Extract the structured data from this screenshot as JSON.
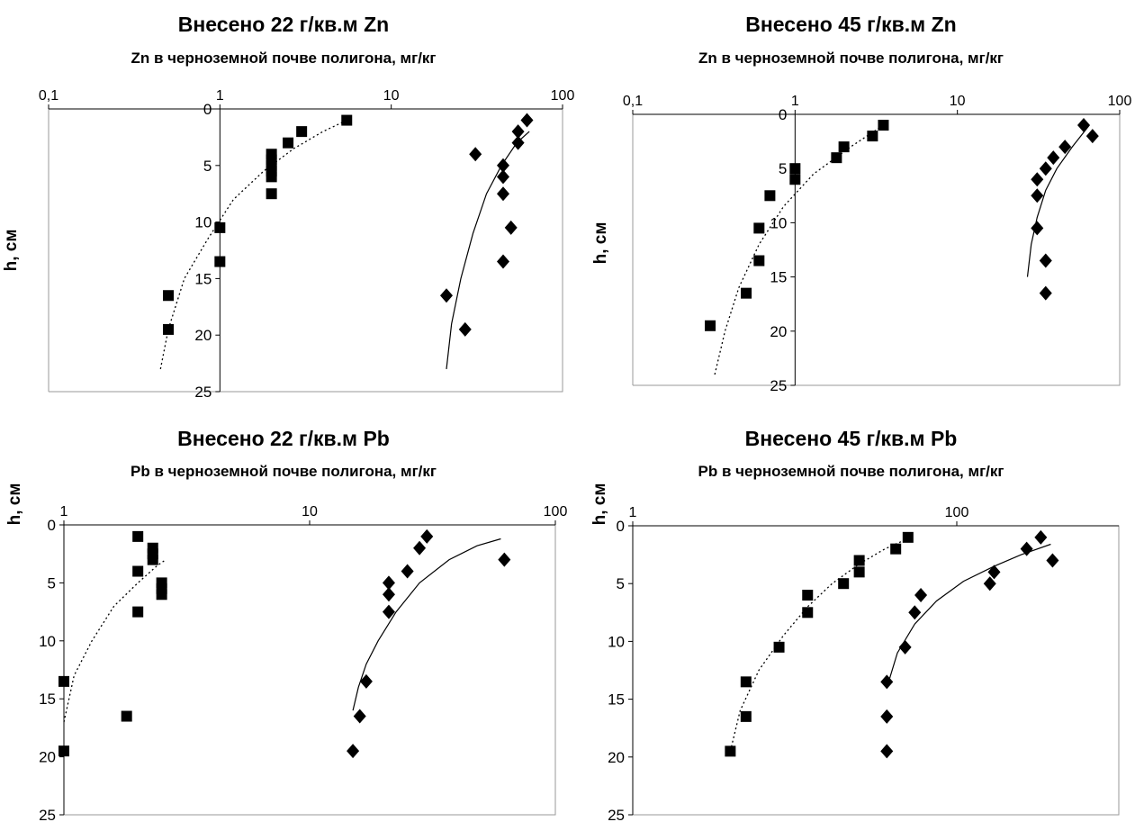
{
  "chart_data": [
    {
      "type": "scatter",
      "title": "Внесено 22 г/кв.м Zn",
      "subtitle": "Zn в черноземной почве полигона, мг/кг",
      "xlabel": "Zn в черноземной почве полигона, мг/кг",
      "ylabel": "h, см",
      "x_scale": "log",
      "xlim": [
        0.1,
        100
      ],
      "x_ticks": [
        "0,1",
        "1",
        "10",
        "100"
      ],
      "ylim": [
        0,
        25
      ],
      "y_ticks": [
        "0",
        "5",
        "10",
        "15",
        "20",
        "25"
      ],
      "y_axis_at_x": 1,
      "grid": false,
      "series": [
        {
          "marker": "diamond",
          "points": [
            [
              62,
              1
            ],
            [
              55,
              2
            ],
            [
              55,
              3
            ],
            [
              31,
              4
            ],
            [
              45,
              5
            ],
            [
              45,
              6
            ],
            [
              45,
              7.5
            ],
            [
              50,
              10.5
            ],
            [
              45,
              13.5
            ],
            [
              21,
              16.5
            ],
            [
              27,
              19.5
            ]
          ]
        },
        {
          "marker": "square",
          "points": [
            [
              5.5,
              1
            ],
            [
              3,
              2
            ],
            [
              2.5,
              3
            ],
            [
              2,
              4
            ],
            [
              2,
              4.5
            ],
            [
              2,
              5
            ],
            [
              2,
              5.5
            ],
            [
              2,
              6
            ],
            [
              2,
              7.5
            ],
            [
              1,
              10.5
            ],
            [
              1,
              13.5
            ],
            [
              0.5,
              16.5
            ],
            [
              0.5,
              19.5
            ]
          ]
        }
      ],
      "trendlines": [
        {
          "style": "solid",
          "points": [
            [
              21,
              23
            ],
            [
              22.5,
              19
            ],
            [
              25.5,
              15
            ],
            [
              30,
              11
            ],
            [
              36,
              7.5
            ],
            [
              44,
              5
            ],
            [
              54,
              3
            ],
            [
              64,
              2
            ]
          ]
        },
        {
          "style": "dotted",
          "points": [
            [
              0.45,
              23
            ],
            [
              0.5,
              19.5
            ],
            [
              0.62,
              15
            ],
            [
              0.85,
              11.5
            ],
            [
              1.2,
              8
            ],
            [
              1.8,
              5.5
            ],
            [
              2.7,
              3.5
            ],
            [
              4,
              2
            ],
            [
              5.5,
              1
            ]
          ]
        }
      ]
    },
    {
      "type": "scatter",
      "title": "Внесено 45 г/кв.м Zn",
      "subtitle": "Zn в черноземной почве полигона, мг/кг",
      "xlabel": "Zn в черноземной почве полигона, мг/кг",
      "ylabel": "h, см",
      "x_scale": "log",
      "xlim": [
        0.1,
        100
      ],
      "x_ticks": [
        "0,1",
        "1",
        "10",
        "100"
      ],
      "ylim": [
        0,
        25
      ],
      "y_ticks": [
        "0",
        "5",
        "10",
        "15",
        "20",
        "25"
      ],
      "y_axis_at_x": 1,
      "grid": false,
      "series": [
        {
          "marker": "diamond",
          "points": [
            [
              60,
              1
            ],
            [
              68,
              2
            ],
            [
              46,
              3
            ],
            [
              39,
              4
            ],
            [
              35,
              5
            ],
            [
              31,
              6
            ],
            [
              31,
              7.5
            ],
            [
              31,
              10.5
            ],
            [
              35,
              13.5
            ],
            [
              35,
              16.5
            ]
          ]
        },
        {
          "marker": "square",
          "points": [
            [
              3.5,
              1
            ],
            [
              3,
              2
            ],
            [
              2,
              3
            ],
            [
              1.8,
              4
            ],
            [
              1,
              5
            ],
            [
              1,
              6
            ],
            [
              0.7,
              7.5
            ],
            [
              0.6,
              10.5
            ],
            [
              0.6,
              13.5
            ],
            [
              0.5,
              16.5
            ],
            [
              0.3,
              19.5
            ]
          ]
        }
      ],
      "trendlines": [
        {
          "style": "solid",
          "points": [
            [
              27,
              15
            ],
            [
              28.5,
              12
            ],
            [
              31,
              9.5
            ],
            [
              35,
              7
            ],
            [
              41,
              5
            ],
            [
              51,
              3
            ],
            [
              65,
              1
            ]
          ]
        },
        {
          "style": "dotted",
          "points": [
            [
              0.32,
              24
            ],
            [
              0.37,
              20
            ],
            [
              0.45,
              16
            ],
            [
              0.6,
              12
            ],
            [
              0.85,
              8.5
            ],
            [
              1.3,
              5.5
            ],
            [
              2.2,
              3
            ],
            [
              3.5,
              1
            ]
          ]
        }
      ]
    },
    {
      "type": "scatter",
      "title": "Внесено 22 г/кв.м Pb",
      "subtitle": "Pb в черноземной почве полигона, мг/кг",
      "xlabel": "Pb в черноземной почве полигона, мг/кг",
      "ylabel": "h, см",
      "x_scale": "log",
      "xlim": [
        1,
        100
      ],
      "x_ticks": [
        "1",
        "10",
        "100"
      ],
      "ylim": [
        0,
        25
      ],
      "y_ticks": [
        "0",
        "5",
        "10",
        "15",
        "20",
        "25"
      ],
      "y_axis_at_x": 1,
      "grid": false,
      "series": [
        {
          "marker": "diamond",
          "points": [
            [
              30,
              1
            ],
            [
              28,
              2
            ],
            [
              62,
              3
            ],
            [
              25,
              4
            ],
            [
              21,
              5
            ],
            [
              21,
              6
            ],
            [
              21,
              7.5
            ],
            [
              17,
              13.5
            ],
            [
              16,
              16.5
            ],
            [
              15,
              19.5
            ]
          ]
        },
        {
          "marker": "square",
          "points": [
            [
              2,
              1
            ],
            [
              2.3,
              2
            ],
            [
              2.3,
              2.5
            ],
            [
              2.3,
              3
            ],
            [
              2,
              4
            ],
            [
              2.5,
              5
            ],
            [
              2.5,
              5.5
            ],
            [
              2.5,
              6
            ],
            [
              2,
              7.5
            ],
            [
              1,
              13.5
            ],
            [
              1.8,
              16.5
            ],
            [
              1,
              19.5
            ]
          ]
        }
      ],
      "trendlines": [
        {
          "style": "solid",
          "points": [
            [
              15,
              16
            ],
            [
              15.8,
              14
            ],
            [
              17,
              12
            ],
            [
              19,
              10
            ],
            [
              22.5,
              7.5
            ],
            [
              28,
              5
            ],
            [
              37,
              3
            ],
            [
              48,
              1.8
            ],
            [
              60,
              1.2
            ]
          ]
        },
        {
          "style": "dotted",
          "points": [
            [
              1,
              17
            ],
            [
              1.1,
              13
            ],
            [
              1.3,
              10
            ],
            [
              1.6,
              7
            ],
            [
              2,
              5
            ],
            [
              2.4,
              3.5
            ],
            [
              2.6,
              3
            ]
          ]
        }
      ]
    },
    {
      "type": "scatter",
      "title": "Внесено 45 г/кв.м Pb",
      "subtitle": "Pb в черноземной почве полигона, мг/кг",
      "xlabel": "Pb в черноземной почве полигона, мг/кг",
      "ylabel": "h, см",
      "x_scale": "log",
      "xlim": [
        1,
        1000
      ],
      "x_ticks": [
        "1",
        "100"
      ],
      "ylim": [
        0,
        25
      ],
      "y_ticks": [
        "0",
        "5",
        "10",
        "15",
        "20",
        "25"
      ],
      "y_axis_at_x": 1,
      "grid": false,
      "series": [
        {
          "marker": "diamond",
          "points": [
            [
              330,
              1
            ],
            [
              270,
              2
            ],
            [
              390,
              3
            ],
            [
              170,
              4
            ],
            [
              160,
              5
            ],
            [
              60,
              6
            ],
            [
              55,
              7.5
            ],
            [
              48,
              10.5
            ],
            [
              37,
              13.5
            ],
            [
              37,
              16.5
            ],
            [
              37,
              19.5
            ]
          ]
        },
        {
          "marker": "square",
          "points": [
            [
              50,
              1
            ],
            [
              42,
              2
            ],
            [
              25,
              3
            ],
            [
              25,
              4
            ],
            [
              20,
              5
            ],
            [
              12,
              6
            ],
            [
              12,
              7.5
            ],
            [
              8,
              10.5
            ],
            [
              5,
              13.5
            ],
            [
              5,
              16.5
            ],
            [
              4,
              19.5
            ]
          ]
        }
      ],
      "trendlines": [
        {
          "style": "solid",
          "points": [
            [
              37,
              14
            ],
            [
              43,
              11
            ],
            [
              55,
              8.5
            ],
            [
              75,
              6.5
            ],
            [
              110,
              4.8
            ],
            [
              170,
              3.5
            ],
            [
              250,
              2.5
            ],
            [
              380,
              1.6
            ]
          ]
        },
        {
          "style": "dotted",
          "points": [
            [
              4,
              19.5
            ],
            [
              4.6,
              16
            ],
            [
              6,
              12.5
            ],
            [
              8.5,
              9.5
            ],
            [
              12,
              7
            ],
            [
              17,
              5
            ],
            [
              25,
              3.3
            ],
            [
              36,
              2
            ],
            [
              52,
              1
            ]
          ]
        }
      ]
    }
  ]
}
